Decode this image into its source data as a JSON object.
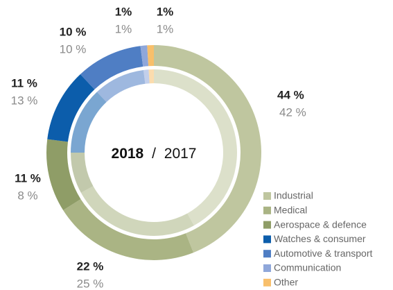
{
  "chart_data": {
    "type": "donut",
    "categories": [
      "Industrial",
      "Medical",
      "Aerospace & defence",
      "Watches & consumer",
      "Automotive & transport",
      "Communication",
      "Other"
    ],
    "colors": [
      "#bfc69f",
      "#aab484",
      "#8f9d67",
      "#0c5dab",
      "#4f7ec4",
      "#8fa7da",
      "#f8bf6b"
    ],
    "name_separator": "/",
    "series": [
      {
        "name": "2018",
        "values": [
          44,
          22,
          11,
          11,
          10,
          1,
          1
        ],
        "value_labels": [
          "44 %",
          "22 %",
          "11 %",
          "11 %",
          "10 %",
          "1%",
          "1%"
        ]
      },
      {
        "name": "2017",
        "values": [
          42,
          25,
          8,
          13,
          10,
          1,
          1
        ],
        "value_labels": [
          "42 %",
          "25 %",
          "8 %",
          "13 %",
          "10 %",
          "1%",
          "1%"
        ]
      }
    ]
  }
}
